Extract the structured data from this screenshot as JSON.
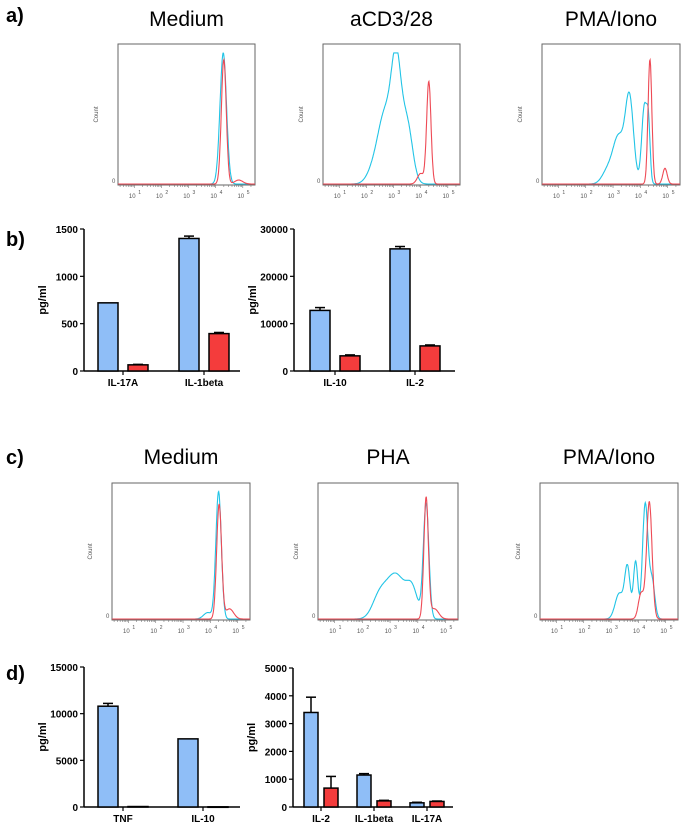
{
  "panel_labels": [
    "a)",
    "b)",
    "c)",
    "d)"
  ],
  "colors": {
    "blue_bar": "#8fbef7",
    "red_bar": "#f43c3c",
    "cyan_line": "#22c4e6",
    "red_line": "#ee4a55"
  },
  "chart_data": [
    {
      "type": "line",
      "panel": "a",
      "title": "Medium",
      "ylabel": "Count",
      "y_zero_label": "0",
      "x_scale": "log10",
      "xlim": [
        0.4,
        5.45
      ],
      "x_ticks": [
        "10",
        "10",
        "10",
        "10",
        "10"
      ],
      "x_tick_exponents": [
        "1",
        "2",
        "3",
        "4",
        "5"
      ],
      "series": [
        {
          "name": "cyan",
          "components": [
            [
              4.28,
              0.12,
              1.0
            ]
          ]
        },
        {
          "name": "red",
          "components": [
            [
              4.3,
              0.09,
              0.95
            ],
            [
              4.85,
              0.15,
              0.03
            ]
          ]
        }
      ]
    },
    {
      "type": "line",
      "panel": "a",
      "title": "aCD3/28",
      "ylabel": "Count",
      "y_zero_label": "0",
      "x_scale": "log10",
      "xlim": [
        0.4,
        5.45
      ],
      "x_ticks": [
        "10",
        "10",
        "10",
        "10",
        "10"
      ],
      "x_tick_exponents": [
        "1",
        "2",
        "3",
        "4",
        "5"
      ],
      "series": [
        {
          "name": "cyan",
          "components": [
            [
              3.1,
              0.18,
              0.85
            ],
            [
              2.7,
              0.25,
              0.5
            ],
            [
              3.5,
              0.2,
              0.45
            ],
            [
              2.3,
              0.25,
              0.12
            ]
          ]
        },
        {
          "name": "red",
          "components": [
            [
              4.3,
              0.08,
              0.78
            ],
            [
              4.0,
              0.12,
              0.08
            ]
          ]
        }
      ]
    },
    {
      "type": "line",
      "panel": "a",
      "title": "PMA/Iono",
      "ylabel": "Count",
      "y_zero_label": "0",
      "x_scale": "log10",
      "xlim": [
        0.4,
        5.45
      ],
      "x_ticks": [
        "10",
        "10",
        "10",
        "10",
        "10"
      ],
      "x_tick_exponents": [
        "1",
        "2",
        "3",
        "4",
        "5"
      ],
      "series": [
        {
          "name": "cyan",
          "components": [
            [
              3.6,
              0.15,
              0.65
            ],
            [
              4.15,
              0.1,
              0.6
            ],
            [
              3.2,
              0.2,
              0.35
            ],
            [
              4.3,
              0.06,
              0.35
            ],
            [
              2.8,
              0.2,
              0.1
            ]
          ]
        },
        {
          "name": "red",
          "components": [
            [
              4.35,
              0.07,
              0.95
            ],
            [
              4.9,
              0.08,
              0.12
            ]
          ]
        }
      ]
    },
    {
      "type": "bar",
      "panel": "b",
      "ylabel": "pg/ml",
      "ylim": [
        0,
        1500
      ],
      "yticks": [
        "0",
        "500",
        "1000",
        "1500"
      ],
      "categories": [
        "IL-17A",
        "IL-1beta"
      ],
      "series": [
        {
          "name": "blue",
          "values": [
            720,
            1400
          ],
          "errors": [
            0,
            25
          ]
        },
        {
          "name": "red",
          "values": [
            65,
            395
          ],
          "errors": [
            5,
            12
          ]
        }
      ]
    },
    {
      "type": "bar",
      "panel": "b",
      "ylabel": "pg/ml",
      "ylim": [
        0,
        30000
      ],
      "yticks": [
        "0",
        "10000",
        "20000",
        "30000"
      ],
      "categories": [
        "IL-10",
        "IL-2"
      ],
      "series": [
        {
          "name": "blue",
          "values": [
            12800,
            25800
          ],
          "errors": [
            600,
            500
          ]
        },
        {
          "name": "red",
          "values": [
            3200,
            5300
          ],
          "errors": [
            200,
            200
          ]
        }
      ]
    },
    {
      "type": "line",
      "panel": "c",
      "title": "Medium",
      "ylabel": "Count",
      "y_zero_label": "0",
      "x_scale": "log10",
      "xlim": [
        0.4,
        5.45
      ],
      "x_ticks": [
        "10",
        "10",
        "10",
        "10",
        "10"
      ],
      "x_tick_exponents": [
        "1",
        "2",
        "3",
        "4",
        "5"
      ],
      "series": [
        {
          "name": "cyan",
          "components": [
            [
              4.3,
              0.1,
              1.0
            ],
            [
              3.9,
              0.15,
              0.05
            ]
          ]
        },
        {
          "name": "red",
          "components": [
            [
              4.32,
              0.09,
              0.9
            ],
            [
              4.7,
              0.15,
              0.08
            ]
          ]
        }
      ]
    },
    {
      "type": "line",
      "panel": "c",
      "title": "PHA",
      "ylabel": "Count",
      "y_zero_label": "0",
      "x_scale": "log10",
      "xlim": [
        0.4,
        5.45
      ],
      "x_ticks": [
        "10",
        "10",
        "10",
        "10",
        "10"
      ],
      "x_tick_exponents": [
        "1",
        "2",
        "3",
        "4",
        "5"
      ],
      "series": [
        {
          "name": "cyan",
          "components": [
            [
              4.3,
              0.1,
              0.9
            ],
            [
              3.2,
              0.35,
              0.35
            ],
            [
              2.6,
              0.25,
              0.15
            ],
            [
              3.8,
              0.2,
              0.2
            ]
          ]
        },
        {
          "name": "red",
          "components": [
            [
              4.3,
              0.08,
              0.95
            ],
            [
              4.6,
              0.15,
              0.08
            ]
          ]
        }
      ]
    },
    {
      "type": "line",
      "panel": "c",
      "title": "PMA/Iono",
      "ylabel": "Count",
      "y_zero_label": "0",
      "x_scale": "log10",
      "xlim": [
        0.4,
        5.45
      ],
      "x_ticks": [
        "10",
        "10",
        "10",
        "10",
        "10"
      ],
      "x_tick_exponents": [
        "1",
        "2",
        "3",
        "4",
        "5"
      ],
      "series": [
        {
          "name": "cyan",
          "components": [
            [
              4.25,
              0.1,
              0.9
            ],
            [
              3.6,
              0.1,
              0.4
            ],
            [
              3.9,
              0.08,
              0.45
            ],
            [
              3.3,
              0.15,
              0.2
            ],
            [
              4.5,
              0.1,
              0.3
            ]
          ]
        },
        {
          "name": "red",
          "components": [
            [
              4.4,
              0.1,
              0.92
            ],
            [
              4.1,
              0.1,
              0.2
            ]
          ]
        }
      ]
    },
    {
      "type": "bar",
      "panel": "d",
      "ylabel": "pg/ml",
      "ylim": [
        0,
        15000
      ],
      "yticks": [
        "0",
        "5000",
        "10000",
        "15000"
      ],
      "categories": [
        "TNF",
        "IL-10"
      ],
      "series": [
        {
          "name": "blue",
          "values": [
            10800,
            7300
          ],
          "errors": [
            300,
            0
          ]
        },
        {
          "name": "red",
          "values": [
            50,
            20
          ],
          "errors": [
            0,
            0
          ]
        }
      ]
    },
    {
      "type": "bar",
      "panel": "d",
      "ylabel": "pg/ml",
      "ylim": [
        0,
        5000
      ],
      "yticks": [
        "0",
        "1000",
        "2000",
        "3000",
        "4000",
        "5000"
      ],
      "categories": [
        "IL-2",
        "IL-1beta",
        "IL-17A"
      ],
      "series": [
        {
          "name": "blue",
          "values": [
            3400,
            1150,
            150
          ],
          "errors": [
            550,
            50,
            20
          ]
        },
        {
          "name": "red",
          "values": [
            680,
            220,
            200
          ],
          "errors": [
            420,
            20,
            15
          ]
        }
      ]
    }
  ]
}
